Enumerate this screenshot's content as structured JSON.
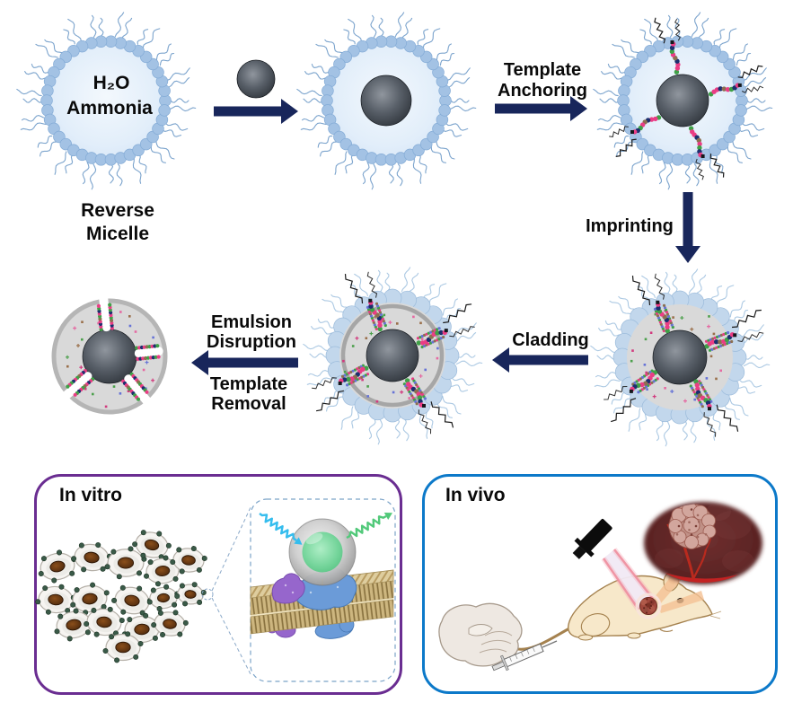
{
  "scheme": {
    "micelle_interior": {
      "line1": "H₂O",
      "line2": "Ammonia"
    },
    "reverse_micelle_caption": "Reverse\nMicelle",
    "steps": {
      "template_anchoring": "Template\nAnchoring",
      "imprinting": "Imprinting",
      "cladding": "Cladding",
      "emulsion_disruption": "Emulsion\nDisruption",
      "template_removal": "Template\nRemoval"
    }
  },
  "panels": {
    "in_vitro": {
      "title": "In vitro"
    },
    "in_vivo": {
      "title": "In vivo"
    }
  },
  "colors": {
    "step_arrow": "#18265b",
    "label_text": "#0a0a0a",
    "in_vitro_border": "#6a2d91",
    "in_vivo_border": "#0c79c9",
    "micelle_bead": "#a3c2e4",
    "micelle_bead_row2": "#c2d7ec",
    "micelle_tail": "#6e9ac8",
    "micelle_tail_row2": "#a3c3e0",
    "polymer_matrix": "#d9d9d9",
    "cladding_ring": "#a6a6a6",
    "core_gray_dark": "#23282e",
    "template_green": "#3fa047",
    "template_pink": "#ea3d85",
    "template_navy": "#1c2f6e",
    "template_brown": "#8c6f50",
    "dot_blue": "#6673d6",
    "excitation_arrow": "#35bdee",
    "emission_arrow": "#52c97a",
    "nanoparticle_core_green": "#5fc98b",
    "membrane_tan": "#cdb67f",
    "protein_blue": "#6b9bd8",
    "protein_purple": "#9666cc",
    "cell_nucleus_brown": "#5d3311",
    "cell_dot_green": "#3a5a48",
    "mouse_cream": "#f7e8ca",
    "tumor_closeup_bg": "#5c2424",
    "vessel_red": "#c32222",
    "laser_beam_edge": "#ef8f9f"
  }
}
